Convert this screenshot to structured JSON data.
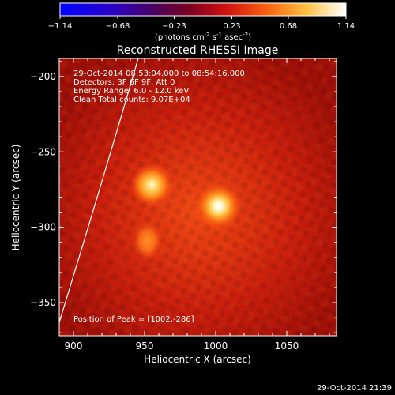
{
  "colorbar": {
    "ticks": [
      "-1.14",
      "-0.68",
      "-0.23",
      "0.23",
      "0.68",
      "1.14"
    ],
    "units_main": "(photons cm",
    "units_sup1": "-2",
    "units_mid": " s",
    "units_sup2": "-1",
    "units_end": " asec",
    "units_sup3": "-2",
    "units_close": ")"
  },
  "chart_data": {
    "type": "heatmap",
    "title": "Reconstructed RHESSI Image",
    "xlabel": "Heliocentric X (arcsec)",
    "ylabel": "Heliocentric Y (arcsec)",
    "xlim": [
      890,
      1085
    ],
    "ylim": [
      -372,
      -188
    ],
    "xticks": [
      900,
      950,
      1000,
      1050
    ],
    "yticks": [
      -200,
      -250,
      -300,
      -350
    ],
    "xtick_labels": [
      "900",
      "950",
      "1000",
      "1050"
    ],
    "ytick_labels": [
      "-200",
      "-250",
      "-300",
      "-350"
    ],
    "colormap": "hot (black-blue-purple-red-orange-yellow-white)",
    "color_range": [
      -1.14,
      1.14
    ],
    "sources": [
      {
        "x": 1002,
        "y": -286,
        "relative_intensity": 1.0
      },
      {
        "x": 955,
        "y": -272,
        "relative_intensity": 0.85
      },
      {
        "x": 952,
        "y": -309,
        "relative_intensity": 0.45
      }
    ],
    "info_lines": [
      "29-Oct-2014 08:53:04.000 to 08:54:16.000",
      "Detectors: 3F 6F 9F, Att 0",
      "Energy Range: 6.0 - 12.0 keV",
      "Clean    Total counts: 9.07E+04"
    ],
    "peak_label": "Position of Peak = [1002,-286]",
    "limb_line": true
  },
  "footer_timestamp": "29-Oct-2014 21:39"
}
